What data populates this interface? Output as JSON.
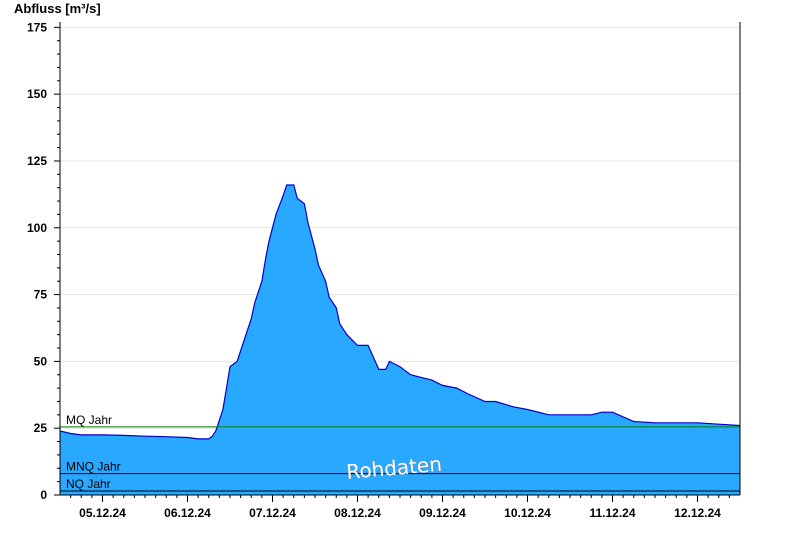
{
  "chart_data": {
    "type": "area",
    "ylabel": "Abfluss [m³/s]",
    "ylim": [
      0,
      177
    ],
    "yticks": [
      0,
      25,
      50,
      75,
      100,
      125,
      150,
      175
    ],
    "xlim": [
      "04.12.24 12:00",
      "12.12.24 12:00"
    ],
    "xtick_labels": [
      "05.12.24",
      "06.12.24",
      "07.12.24",
      "08.12.24",
      "09.12.24",
      "10.12.24",
      "11.12.24",
      "12.12.24"
    ],
    "grid": true,
    "fill_color": "#29a8ff",
    "line_color": "#0000cc",
    "reference_lines": [
      {
        "label": "MQ Jahr",
        "value": 25.5,
        "color": "#008000"
      },
      {
        "label": "MNQ Jahr",
        "value": 8,
        "color": "#000000"
      },
      {
        "label": "NQ Jahr",
        "value": 1.5,
        "color": "#000000"
      }
    ],
    "watermark": "Rohdaten",
    "series": [
      {
        "x": [
          "04.12.24 12:00",
          "04.12.24 15:00",
          "04.12.24 18:00",
          "05.12.24 00:00",
          "05.12.24 06:00",
          "05.12.24 12:00",
          "05.12.24 18:00",
          "06.12.24 00:00",
          "06.12.24 03:00",
          "06.12.24 06:00",
          "06.12.24 07:00",
          "06.12.24 08:00",
          "06.12.24 09:00",
          "06.12.24 10:00",
          "06.12.24 11:00",
          "06.12.24 12:00",
          "06.12.24 14:00",
          "06.12.24 16:00",
          "06.12.24 18:00",
          "06.12.24 19:00",
          "06.12.24 21:00",
          "06.12.24 22:00",
          "06.12.24 23:00",
          "07.12.24 00:00",
          "07.12.24 01:00",
          "07.12.24 03:00",
          "07.12.24 04:00",
          "07.12.24 06:00",
          "07.12.24 07:00",
          "07.12.24 09:00",
          "07.12.24 10:00",
          "07.12.24 12:00",
          "07.12.24 13:00",
          "07.12.24 15:00",
          "07.12.24 16:00",
          "07.12.24 18:00",
          "07.12.24 19:00",
          "07.12.24 21:00",
          "08.12.24 00:00",
          "08.12.24 03:00",
          "08.12.24 06:00",
          "08.12.24 08:00",
          "08.12.24 09:00",
          "08.12.24 12:00",
          "08.12.24 15:00",
          "08.12.24 18:00",
          "08.12.24 21:00",
          "09.12.24 00:00",
          "09.12.24 04:00",
          "09.12.24 07:00",
          "09.12.24 12:00",
          "09.12.24 15:00",
          "09.12.24 20:00",
          "10.12.24 00:00",
          "10.12.24 06:00",
          "10.12.24 12:00",
          "10.12.24 18:00",
          "10.12.24 21:00",
          "11.12.24 00:00",
          "11.12.24 06:00",
          "11.12.24 12:00",
          "11.12.24 18:00",
          "12.12.24 00:00",
          "12.12.24 06:00",
          "12.12.24 12:00"
        ],
        "y": [
          24,
          23,
          22.5,
          22.5,
          22.3,
          22,
          21.8,
          21.5,
          21,
          21,
          22,
          24,
          28,
          32,
          40,
          48,
          50,
          58,
          66,
          72,
          80,
          88,
          95,
          100,
          105,
          112,
          116,
          116,
          111,
          109,
          102,
          92,
          86,
          80,
          74,
          70,
          64,
          60,
          56,
          56,
          47,
          47,
          50,
          48,
          45,
          44,
          43,
          41,
          40,
          38,
          35,
          35,
          33,
          32,
          30,
          30,
          30,
          31,
          31,
          27.5,
          27,
          27,
          27,
          26.5,
          26
        ]
      }
    ]
  }
}
